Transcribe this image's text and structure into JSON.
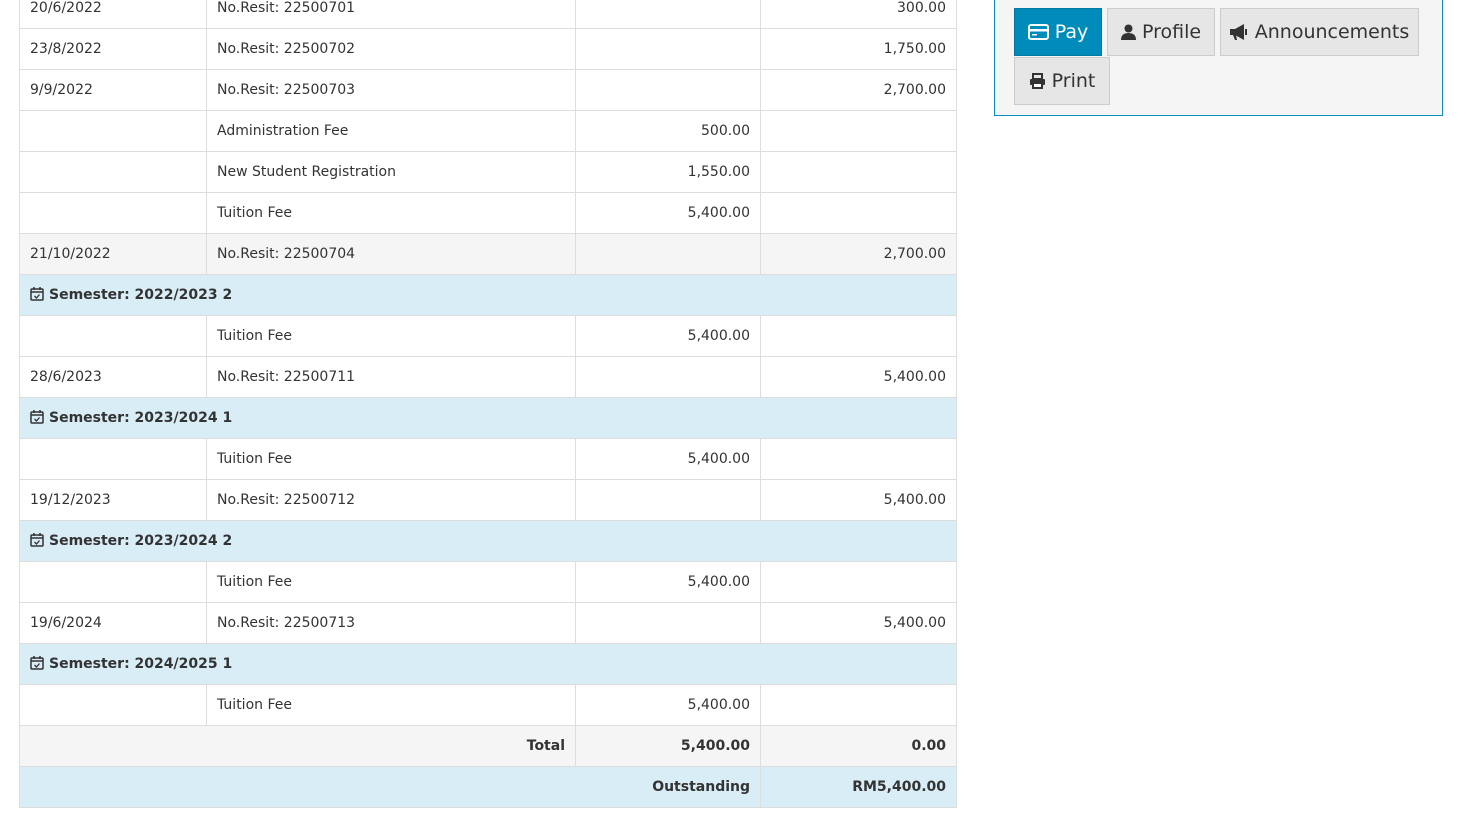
{
  "rows": [
    {
      "type": "payment",
      "date": "20/6/2022",
      "desc": "No.Resit: 22500701",
      "debit": "",
      "credit": "300.00"
    },
    {
      "type": "payment",
      "date": "23/8/2022",
      "desc": "No.Resit: 22500702",
      "debit": "",
      "credit": "1,750.00"
    },
    {
      "type": "payment",
      "date": "9/9/2022",
      "desc": "No.Resit: 22500703",
      "debit": "",
      "credit": "2,700.00"
    },
    {
      "type": "charge",
      "date": "",
      "desc": "Administration Fee",
      "debit": "500.00",
      "credit": ""
    },
    {
      "type": "charge",
      "date": "",
      "desc": "New Student Registration",
      "debit": "1,550.00",
      "credit": ""
    },
    {
      "type": "charge",
      "date": "",
      "desc": "Tuition Fee",
      "debit": "5,400.00",
      "credit": ""
    },
    {
      "type": "grey",
      "date": "21/10/2022",
      "desc": "No.Resit: 22500704",
      "debit": "",
      "credit": "2,700.00"
    },
    {
      "type": "sem",
      "label": "Semester: 2022/2023 2"
    },
    {
      "type": "charge",
      "date": "",
      "desc": "Tuition Fee",
      "debit": "5,400.00",
      "credit": ""
    },
    {
      "type": "payment",
      "date": "28/6/2023",
      "desc": "No.Resit: 22500711",
      "debit": "",
      "credit": "5,400.00"
    },
    {
      "type": "sem",
      "label": "Semester: 2023/2024 1"
    },
    {
      "type": "charge",
      "date": "",
      "desc": "Tuition Fee",
      "debit": "5,400.00",
      "credit": ""
    },
    {
      "type": "payment",
      "date": "19/12/2023",
      "desc": "No.Resit: 22500712",
      "debit": "",
      "credit": "5,400.00"
    },
    {
      "type": "sem",
      "label": "Semester: 2023/2024 2"
    },
    {
      "type": "charge",
      "date": "",
      "desc": "Tuition Fee",
      "debit": "5,400.00",
      "credit": ""
    },
    {
      "type": "payment",
      "date": "19/6/2024",
      "desc": "No.Resit: 22500713",
      "debit": "",
      "credit": "5,400.00"
    },
    {
      "type": "sem",
      "label": "Semester: 2024/2025 1"
    },
    {
      "type": "charge",
      "date": "",
      "desc": "Tuition Fee",
      "debit": "5,400.00",
      "credit": ""
    }
  ],
  "total": {
    "label": "Total",
    "debit": "5,400.00",
    "credit": "0.00"
  },
  "outstanding": {
    "label": "Outstanding",
    "amount": "RM5,400.00"
  },
  "actions": {
    "pay": "Pay",
    "profile": "Profile",
    "announcements": "Announcements",
    "print": "Print"
  },
  "colors": {
    "primary": "#008cba",
    "semester_bg": "#d9edf7"
  }
}
